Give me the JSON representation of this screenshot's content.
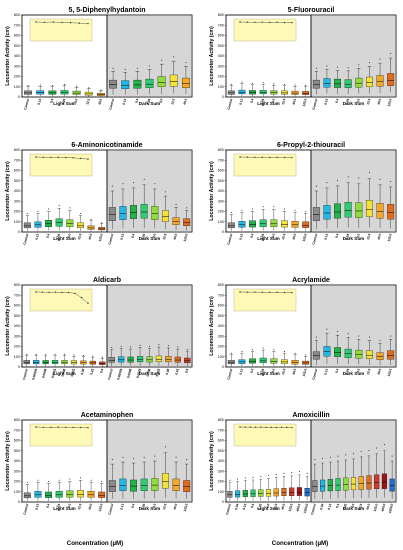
{
  "figure": {
    "xlabel_left": "Concentration (µM)",
    "xlabel_right": "Concentration (µM)"
  },
  "chart_data": [
    {
      "type": "box",
      "title": "5, 5-Diphenylhydantoin",
      "ylabel": "Locomotor Activity (cm)",
      "ylim": [
        0,
        800
      ],
      "yticks": [
        0,
        100,
        200,
        300,
        400,
        500,
        600,
        700,
        800
      ],
      "categories": [
        "Control",
        "0.13",
        "0.4",
        "1.25",
        "4.0",
        "12.5",
        "40.0"
      ],
      "groups": [
        "Light Sum",
        "Dark Sum"
      ],
      "light": {
        "medians": [
          40,
          42,
          40,
          42,
          38,
          30,
          22
        ],
        "q1": [
          25,
          28,
          26,
          28,
          25,
          18,
          14
        ],
        "q3": [
          60,
          62,
          60,
          64,
          58,
          48,
          36
        ],
        "low": [
          5,
          8,
          6,
          8,
          6,
          4,
          3
        ],
        "high": [
          100,
          105,
          100,
          110,
          95,
          80,
          60
        ]
      },
      "dark": {
        "medians": [
          120,
          115,
          118,
          125,
          140,
          150,
          130
        ],
        "q1": [
          85,
          80,
          85,
          90,
          100,
          105,
          90
        ],
        "q3": [
          165,
          160,
          165,
          175,
          200,
          215,
          185
        ],
        "low": [
          25,
          25,
          25,
          30,
          30,
          35,
          30
        ],
        "high": [
          250,
          240,
          250,
          270,
          320,
          350,
          300
        ]
      },
      "inset": [
        1.0,
        0.98,
        1.0,
        0.97,
        0.95,
        0.92,
        0.88
      ]
    },
    {
      "type": "box",
      "title": "5-Fluorouracil",
      "ylabel": "Locomotor Activity (cm)",
      "ylim": [
        0,
        800
      ],
      "yticks": [
        0,
        100,
        200,
        300,
        400,
        500,
        600,
        700,
        800
      ],
      "categories": [
        "Control",
        "0.13",
        "0.4",
        "1.25",
        "4.0",
        "12.5",
        "40.0",
        "125.0"
      ],
      "groups": [
        "Light Sum",
        "Dark Sum"
      ],
      "light": {
        "medians": [
          40,
          45,
          42,
          44,
          42,
          40,
          38,
          35
        ],
        "q1": [
          25,
          30,
          28,
          30,
          28,
          26,
          24,
          22
        ],
        "q3": [
          60,
          68,
          64,
          66,
          62,
          60,
          58,
          55
        ],
        "low": [
          5,
          8,
          8,
          8,
          8,
          6,
          6,
          5
        ],
        "high": [
          110,
          130,
          120,
          125,
          115,
          110,
          105,
          100
        ]
      },
      "dark": {
        "medians": [
          120,
          130,
          128,
          125,
          135,
          140,
          150,
          160
        ],
        "q1": [
          85,
          95,
          92,
          90,
          95,
          100,
          105,
          110
        ],
        "q3": [
          165,
          180,
          175,
          170,
          185,
          195,
          210,
          230
        ],
        "low": [
          25,
          35,
          30,
          30,
          35,
          35,
          40,
          45
        ],
        "high": [
          250,
          270,
          260,
          255,
          280,
          300,
          330,
          380
        ]
      },
      "inset": [
        1.0,
        0.99,
        0.98,
        0.99,
        0.97,
        0.98,
        0.96,
        0.95
      ]
    },
    {
      "type": "box",
      "title": "6-Aminonicotinamide",
      "ylabel": "Locomotor Activity (cm)",
      "ylim": [
        0,
        800
      ],
      "yticks": [
        0,
        100,
        200,
        300,
        400,
        500,
        600,
        700,
        800
      ],
      "categories": [
        "Control",
        "0.13",
        "0.4",
        "1.25",
        "4.0",
        "12.5",
        "40.0",
        "125.0"
      ],
      "groups": [
        "Light Sum",
        "Dark Sum"
      ],
      "light": {
        "medians": [
          60,
          70,
          80,
          90,
          85,
          60,
          40,
          30
        ],
        "q1": [
          40,
          45,
          50,
          55,
          50,
          40,
          25,
          20
        ],
        "q3": [
          90,
          100,
          115,
          130,
          120,
          90,
          60,
          45
        ],
        "low": [
          10,
          12,
          15,
          15,
          12,
          10,
          6,
          5
        ],
        "high": [
          160,
          180,
          200,
          230,
          210,
          160,
          110,
          80
        ]
      },
      "dark": {
        "medians": [
          170,
          180,
          190,
          195,
          180,
          150,
          100,
          90
        ],
        "q1": [
          110,
          120,
          130,
          135,
          120,
          100,
          70,
          60
        ],
        "q3": [
          240,
          250,
          260,
          270,
          250,
          210,
          140,
          130
        ],
        "low": [
          30,
          35,
          40,
          40,
          35,
          30,
          20,
          15
        ],
        "high": [
          400,
          420,
          430,
          460,
          420,
          350,
          240,
          210
        ]
      },
      "inset": [
        1.0,
        0.98,
        0.97,
        0.98,
        0.96,
        0.94,
        0.9,
        0.85
      ]
    },
    {
      "type": "box",
      "title": "6-Propyl-2-thiouracil",
      "ylabel": "Locomotor Activity (cm)",
      "ylim": [
        0,
        800
      ],
      "yticks": [
        0,
        100,
        200,
        300,
        400,
        500,
        600,
        700,
        800
      ],
      "categories": [
        "Control",
        "0.13",
        "0.4",
        "1.25",
        "4.0",
        "12.5",
        "40.0",
        "125.0"
      ],
      "groups": [
        "Light Sum",
        "Dark Sum"
      ],
      "light": {
        "medians": [
          60,
          70,
          75,
          80,
          80,
          75,
          70,
          65
        ],
        "q1": [
          40,
          45,
          48,
          50,
          50,
          48,
          45,
          42
        ],
        "q3": [
          90,
          105,
          110,
          120,
          120,
          110,
          105,
          100
        ],
        "low": [
          10,
          12,
          12,
          15,
          15,
          12,
          12,
          10
        ],
        "high": [
          170,
          190,
          200,
          220,
          220,
          200,
          190,
          180
        ]
      },
      "dark": {
        "medians": [
          170,
          185,
          195,
          210,
          205,
          220,
          200,
          190
        ],
        "q1": [
          110,
          125,
          135,
          145,
          140,
          150,
          135,
          125
        ],
        "q3": [
          240,
          260,
          275,
          290,
          285,
          310,
          280,
          270
        ],
        "low": [
          30,
          35,
          40,
          45,
          40,
          45,
          40,
          35
        ],
        "high": [
          400,
          430,
          450,
          480,
          470,
          520,
          460,
          440
        ]
      },
      "inset": [
        1.0,
        0.99,
        0.98,
        0.98,
        0.97,
        0.98,
        0.97,
        0.96
      ]
    },
    {
      "type": "box",
      "title": "Aldicarb",
      "ylabel": "Locomotor Activity (cm)",
      "ylim": [
        0,
        800
      ],
      "yticks": [
        0,
        100,
        200,
        300,
        400,
        500,
        600,
        700,
        800
      ],
      "categories": [
        "Control",
        "0.00025",
        "0.0008",
        "0.0025",
        "0.008",
        "0.025",
        "0.08",
        "0.25",
        "0.8"
      ],
      "groups": [
        "Light Sum",
        "Dark Sum"
      ],
      "light": {
        "medians": [
          45,
          45,
          44,
          46,
          45,
          44,
          42,
          40,
          35
        ],
        "q1": [
          30,
          30,
          30,
          31,
          30,
          29,
          28,
          26,
          22
        ],
        "q3": [
          65,
          65,
          64,
          66,
          65,
          63,
          60,
          58,
          50
        ],
        "low": [
          6,
          6,
          6,
          6,
          6,
          6,
          5,
          5,
          4
        ],
        "high": [
          110,
          110,
          108,
          112,
          110,
          105,
          100,
          95,
          85
        ]
      },
      "dark": {
        "medians": [
          65,
          70,
          68,
          72,
          70,
          75,
          72,
          68,
          60
        ],
        "q1": [
          45,
          48,
          47,
          50,
          48,
          52,
          50,
          46,
          40
        ],
        "q3": [
          95,
          100,
          98,
          104,
          100,
          108,
          104,
          98,
          88
        ],
        "low": [
          10,
          12,
          12,
          12,
          12,
          14,
          12,
          10,
          8
        ],
        "high": [
          170,
          180,
          175,
          190,
          180,
          195,
          185,
          175,
          155
        ]
      },
      "inset": [
        1.0,
        0.99,
        0.98,
        0.99,
        0.97,
        0.96,
        0.9,
        0.6,
        0.2
      ]
    },
    {
      "type": "box",
      "title": "Acrylamide",
      "ylabel": "Locomotor Activity (cm)",
      "ylim": [
        0,
        800
      ],
      "yticks": [
        0,
        100,
        200,
        300,
        400,
        500,
        600,
        700,
        800
      ],
      "categories": [
        "Control",
        "0.13",
        "0.4",
        "1.25",
        "4.0",
        "12.5",
        "40.0",
        "125.0"
      ],
      "groups": [
        "Light Sum",
        "Dark Sum"
      ],
      "light": {
        "medians": [
          45,
          50,
          55,
          60,
          55,
          50,
          45,
          40
        ],
        "q1": [
          30,
          33,
          36,
          40,
          36,
          32,
          28,
          25
        ],
        "q3": [
          65,
          72,
          80,
          88,
          80,
          72,
          65,
          58
        ],
        "low": [
          6,
          8,
          8,
          10,
          8,
          8,
          6,
          5
        ],
        "high": [
          120,
          135,
          150,
          165,
          150,
          135,
          120,
          105
        ]
      },
      "dark": {
        "medians": [
          110,
          150,
          140,
          130,
          120,
          115,
          100,
          110
        ],
        "q1": [
          75,
          105,
          100,
          90,
          85,
          80,
          70,
          75
        ],
        "q3": [
          150,
          200,
          190,
          175,
          165,
          160,
          140,
          160
        ],
        "low": [
          20,
          30,
          30,
          25,
          25,
          20,
          18,
          20
        ],
        "high": [
          260,
          330,
          310,
          290,
          270,
          260,
          230,
          270
        ]
      },
      "inset": [
        1.0,
        0.99,
        0.99,
        0.98,
        0.98,
        0.97,
        0.96,
        0.95
      ]
    },
    {
      "type": "box",
      "title": "Acetaminophen",
      "ylabel": "Locomotor Activity (cm)",
      "ylim": [
        0,
        800
      ],
      "yticks": [
        0,
        100,
        200,
        300,
        400,
        500,
        600,
        700,
        800
      ],
      "categories": [
        "Control",
        "0.13",
        "0.4",
        "1.25",
        "4.0",
        "12.5",
        "40.0",
        "125.0"
      ],
      "groups": [
        "Light Sum",
        "Dark Sum"
      ],
      "light": {
        "medians": [
          60,
          70,
          65,
          70,
          72,
          75,
          70,
          65
        ],
        "q1": [
          40,
          45,
          42,
          45,
          47,
          48,
          45,
          42
        ],
        "q3": [
          90,
          105,
          98,
          105,
          110,
          115,
          105,
          98
        ],
        "low": [
          10,
          12,
          10,
          12,
          12,
          12,
          12,
          10
        ],
        "high": [
          170,
          190,
          180,
          190,
          200,
          210,
          190,
          180
        ]
      },
      "dark": {
        "medians": [
          150,
          160,
          155,
          160,
          165,
          200,
          160,
          150
        ],
        "q1": [
          100,
          110,
          105,
          110,
          112,
          135,
          110,
          100
        ],
        "q3": [
          210,
          225,
          215,
          225,
          230,
          280,
          225,
          210
        ],
        "low": [
          30,
          32,
          30,
          32,
          33,
          40,
          32,
          30
        ],
        "high": [
          370,
          390,
          380,
          390,
          400,
          480,
          390,
          370
        ]
      },
      "inset": [
        1.0,
        0.98,
        0.97,
        0.99,
        0.98,
        0.97,
        0.96,
        0.95
      ]
    },
    {
      "type": "box",
      "title": "Amoxicillin",
      "ylabel": "Locomotor Activity (cm)",
      "ylim": [
        0,
        800
      ],
      "yticks": [
        0,
        100,
        200,
        300,
        400,
        500,
        600,
        700,
        800
      ],
      "categories": [
        "Control",
        "0.04",
        "0.13",
        "0.4",
        "1.25",
        "4.0",
        "12.5",
        "40.0",
        "125.0",
        "400.0",
        "1250.0"
      ],
      "groups": [
        "Light Sum",
        "Dark Sum"
      ],
      "light": {
        "medians": [
          70,
          75,
          78,
          80,
          82,
          85,
          88,
          90,
          92,
          95,
          90
        ],
        "q1": [
          45,
          48,
          50,
          52,
          54,
          55,
          58,
          60,
          60,
          62,
          58
        ],
        "q3": [
          105,
          110,
          115,
          118,
          120,
          125,
          130,
          135,
          138,
          142,
          135
        ],
        "low": [
          10,
          12,
          12,
          14,
          14,
          15,
          15,
          16,
          16,
          18,
          16
        ],
        "high": [
          190,
          200,
          210,
          215,
          220,
          230,
          240,
          250,
          255,
          265,
          250
        ]
      },
      "dark": {
        "medians": [
          150,
          155,
          160,
          165,
          170,
          175,
          180,
          185,
          190,
          195,
          160
        ],
        "q1": [
          100,
          104,
          108,
          110,
          114,
          118,
          120,
          124,
          128,
          130,
          105
        ],
        "q3": [
          210,
          215,
          222,
          230,
          235,
          242,
          250,
          258,
          265,
          275,
          225
        ],
        "low": [
          30,
          30,
          32,
          34,
          35,
          36,
          38,
          40,
          40,
          42,
          32
        ],
        "high": [
          370,
          380,
          390,
          400,
          410,
          420,
          440,
          450,
          470,
          500,
          400
        ]
      },
      "inset": [
        1.0,
        0.99,
        0.99,
        0.98,
        0.99,
        0.98,
        0.98,
        0.97,
        0.98,
        0.97,
        0.96
      ]
    }
  ]
}
